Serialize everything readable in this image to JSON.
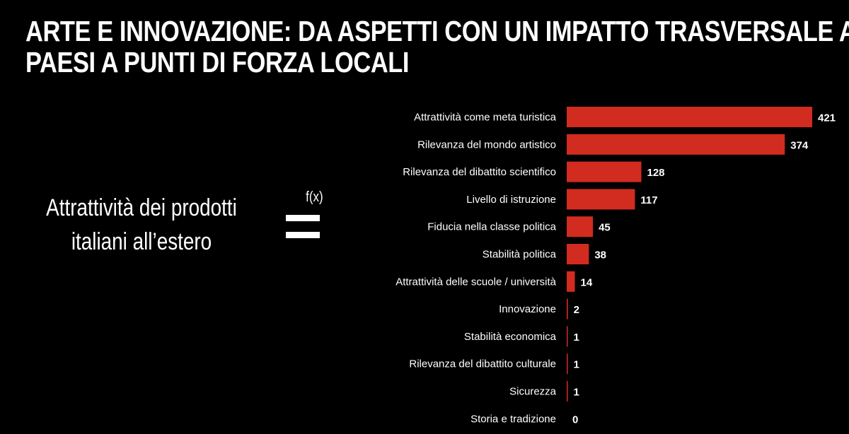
{
  "title": {
    "line1": "ARTE E INNOVAZIONE: DA ASPETTI CON UN IMPATTO TRASVERSALE AI",
    "line2": "PAESI A PUNTI DI FORZA LOCALI"
  },
  "equation": {
    "lhs_line1": "Attrattività dei prodotti",
    "lhs_line2": "italiani all’estero",
    "fx_label": "f(x)"
  },
  "colors": {
    "bar": "#D22B1F",
    "background": "#000000",
    "text": "#ffffff"
  },
  "chart_data": {
    "type": "bar",
    "orientation": "horizontal",
    "title": "",
    "xlabel": "",
    "ylabel": "",
    "xlim": [
      0,
      421
    ],
    "grid": false,
    "categories": [
      "Attrattività come meta turistica",
      "Rilevanza del mondo artistico",
      "Rilevanza del dibattito scientifico",
      "Livello di istruzione",
      "Fiducia nella classe politica",
      "Stabilità politica",
      "Attrattività delle scuole / università",
      "Innovazione",
      "Stabilità economica",
      "Rilevanza del dibattito culturale",
      "Sicurezza",
      "Storia e tradizione"
    ],
    "values": [
      421,
      374,
      128,
      117,
      45,
      38,
      14,
      2,
      1,
      1,
      1,
      0
    ]
  }
}
